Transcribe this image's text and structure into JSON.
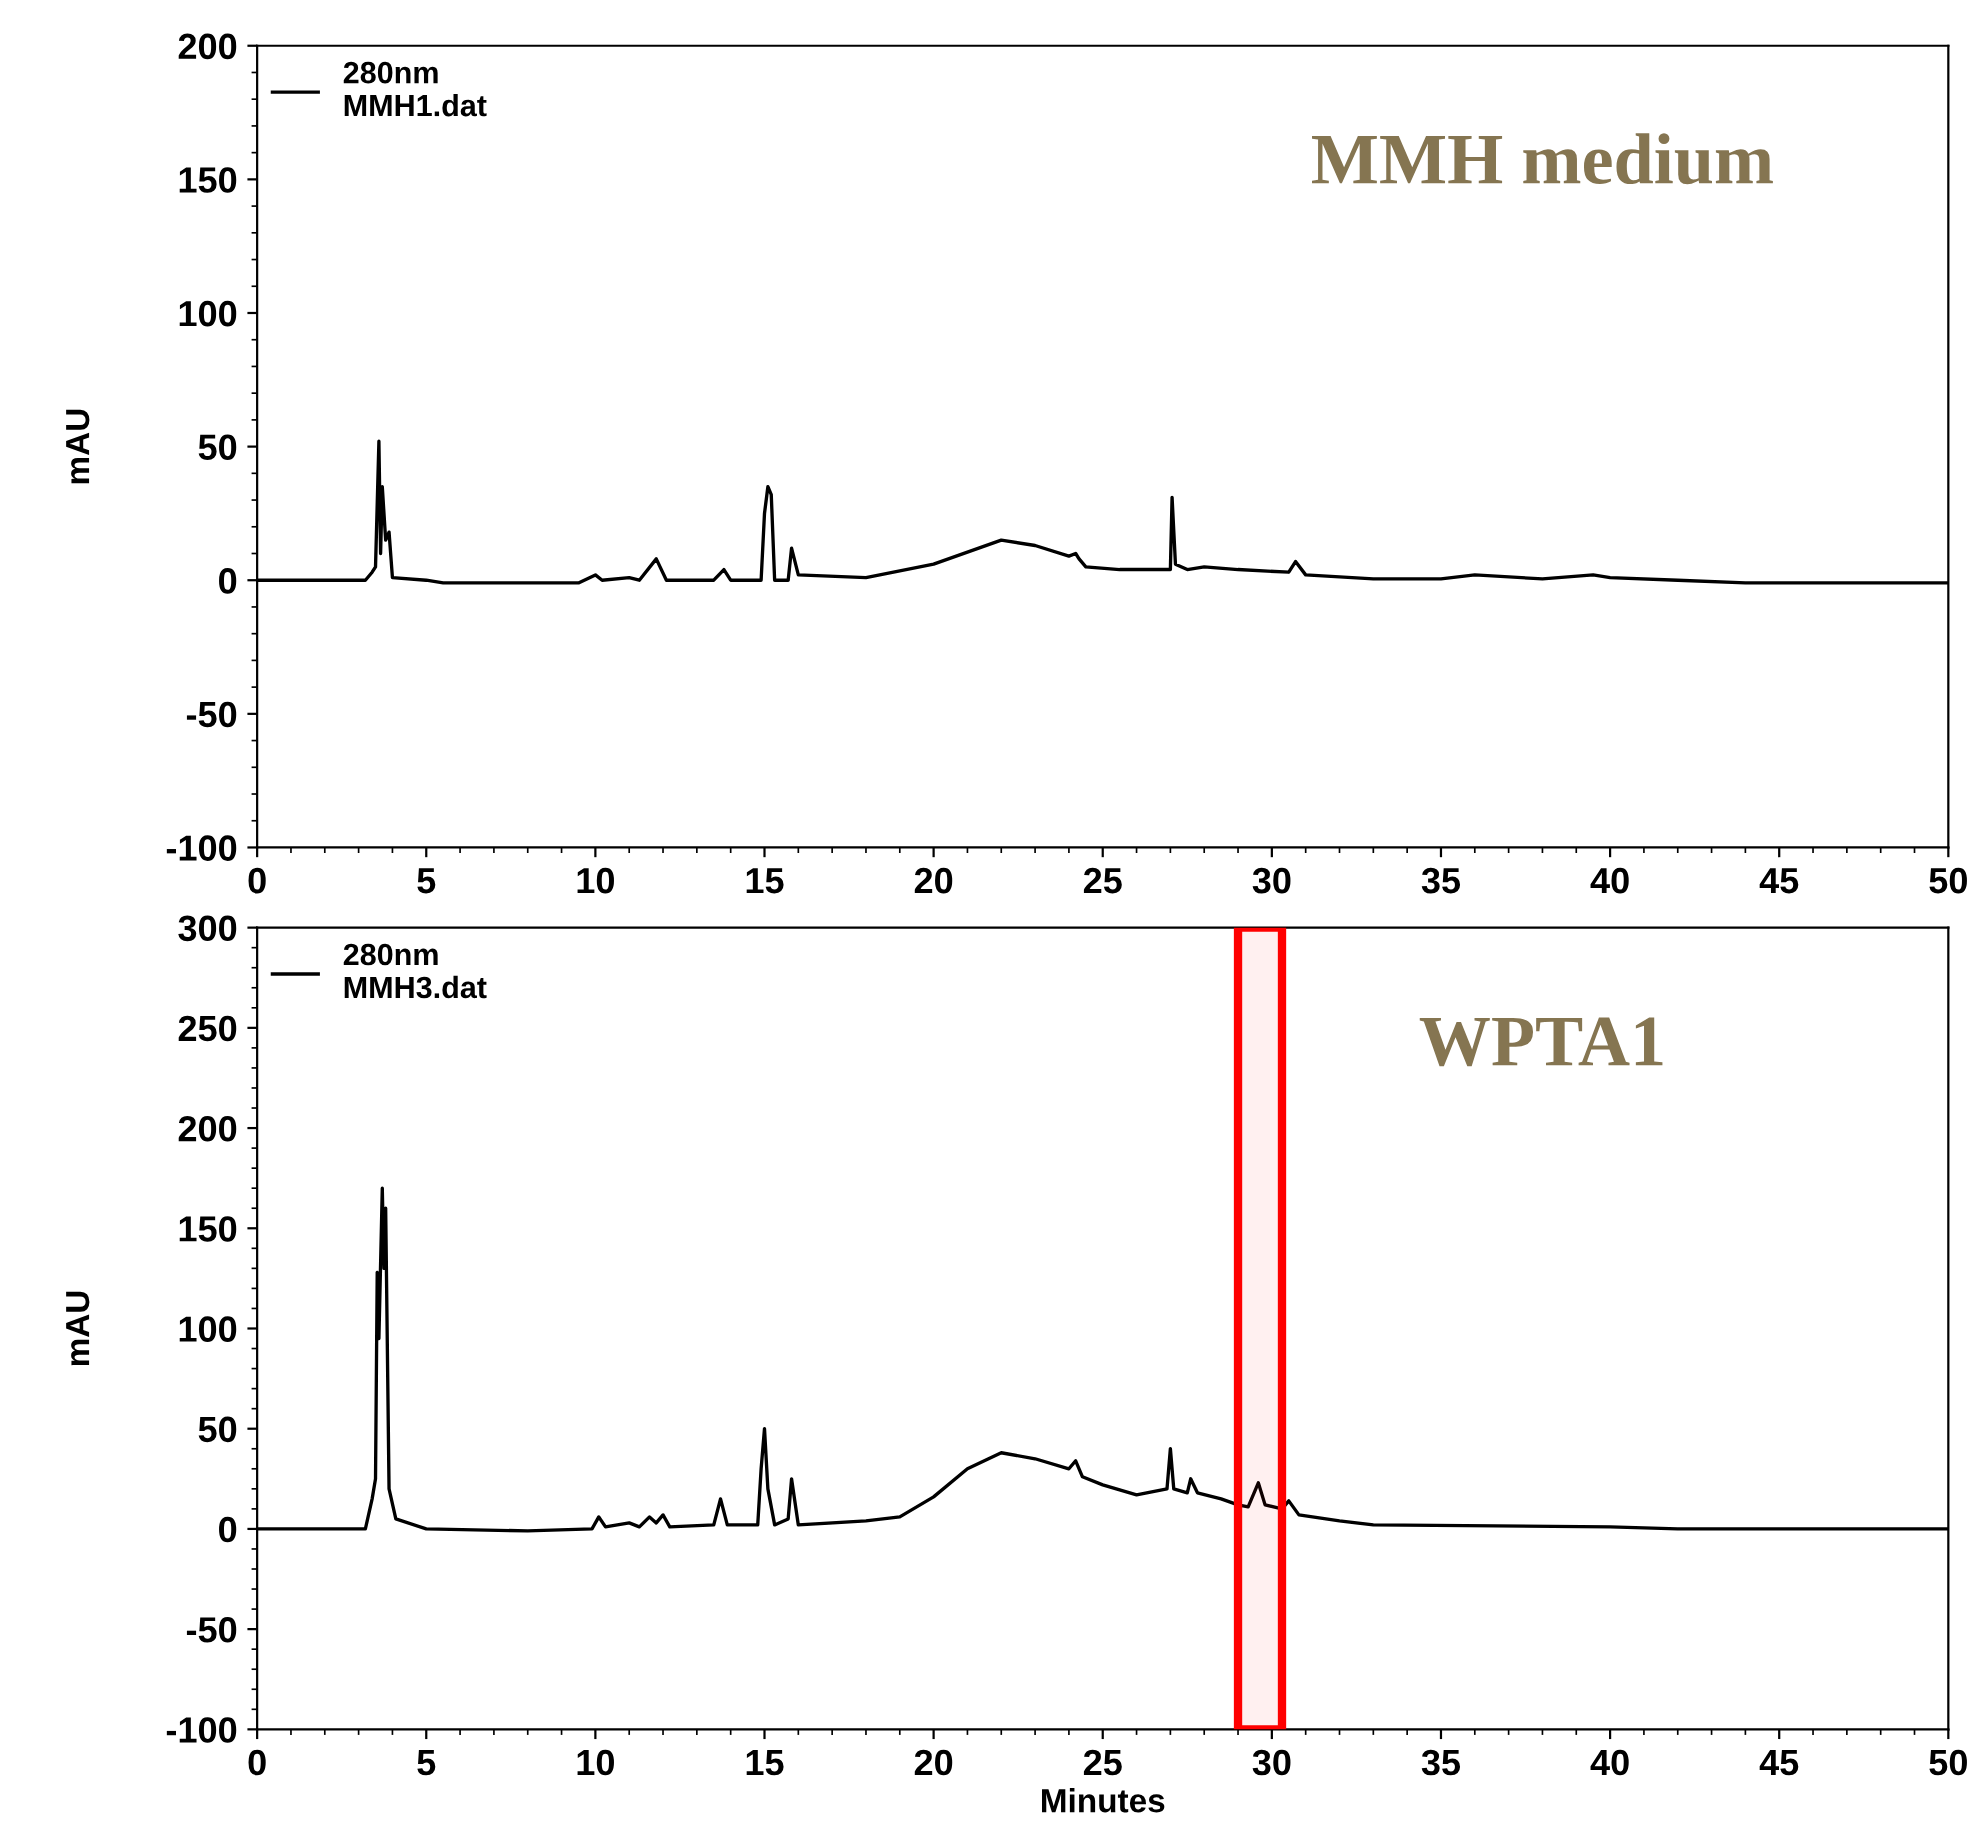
{
  "chart_data": [
    {
      "type": "line",
      "ylabel": "mAU",
      "annotations": [
        "MMH medium"
      ],
      "xlim": [
        0,
        50
      ],
      "xticks": [
        0,
        5,
        10,
        15,
        20,
        25,
        30,
        35,
        40,
        45,
        50
      ],
      "ylim": [
        -100,
        200
      ],
      "yticks": [
        -100,
        -50,
        0,
        50,
        100,
        150,
        200
      ],
      "legend": "top left",
      "grid": false,
      "marker": "none",
      "line_style": "solid",
      "series": [
        {
          "name": "280nm\nMMH1.dat",
          "color": "#000000",
          "x": [
            0,
            3.2,
            3.4,
            3.5,
            3.6,
            3.65,
            3.7,
            3.8,
            3.9,
            4.0,
            5,
            5.5,
            9.5,
            10,
            10.2,
            11,
            11.3,
            11.8,
            12.1,
            13.5,
            13.8,
            14,
            14.9,
            15,
            15.1,
            15.2,
            15.3,
            15.7,
            15.8,
            16,
            18,
            20,
            22,
            23,
            24,
            24.2,
            24.3,
            24.5,
            25.5,
            26.5,
            27,
            27.05,
            27.15,
            27.5,
            28,
            29,
            30.5,
            30.7,
            31,
            33,
            35,
            36,
            38,
            39.5,
            40,
            42,
            44,
            50
          ],
          "values": [
            0,
            0,
            3,
            5,
            52,
            10,
            35,
            15,
            18,
            1,
            0,
            -1,
            -1,
            2,
            0,
            1,
            0,
            8,
            0,
            0,
            4,
            0,
            0,
            25,
            35,
            32,
            0,
            0,
            12,
            2,
            1,
            6,
            15,
            13,
            9,
            10,
            8,
            5,
            4,
            4,
            4,
            31,
            6,
            4,
            5,
            4,
            3,
            7,
            2,
            0.5,
            0.5,
            2,
            0.5,
            2,
            1,
            0,
            -1,
            -1
          ]
        }
      ]
    },
    {
      "type": "line",
      "xlabel": "Minutes",
      "ylabel": "mAU",
      "annotations": [
        "WPTA1"
      ],
      "xlim": [
        0,
        50
      ],
      "xticks": [
        0,
        5,
        10,
        15,
        20,
        25,
        30,
        35,
        40,
        45,
        50
      ],
      "ylim": [
        -100,
        300
      ],
      "yticks": [
        -100,
        -50,
        0,
        50,
        100,
        150,
        200,
        250,
        300
      ],
      "legend": "top left",
      "grid": false,
      "marker": "none",
      "line_style": "solid",
      "bands": [
        {
          "axis": "x",
          "from": 29,
          "to": 30.3,
          "color": "#ff0000"
        }
      ],
      "series": [
        {
          "name": "280nm\nMMH3.dat",
          "color": "#000000",
          "x": [
            0,
            3.2,
            3.4,
            3.5,
            3.55,
            3.6,
            3.7,
            3.75,
            3.8,
            3.9,
            4.1,
            5,
            8,
            9.9,
            10.1,
            10.3,
            11,
            11.3,
            11.6,
            11.8,
            12,
            12.2,
            13.5,
            13.7,
            13.9,
            14.8,
            14.9,
            15,
            15.1,
            15.3,
            15.7,
            15.8,
            16,
            18,
            19,
            20,
            21,
            22,
            23,
            24,
            24.2,
            24.4,
            25,
            26,
            26.9,
            27,
            27.1,
            27.5,
            27.6,
            27.8,
            28.5,
            29,
            29.3,
            29.6,
            29.8,
            30.3,
            30.5,
            30.8,
            32,
            33,
            40,
            42,
            50
          ],
          "values": [
            0,
            0,
            15,
            25,
            128,
            95,
            170,
            130,
            160,
            20,
            5,
            0,
            -1,
            0,
            6,
            1,
            3,
            1,
            6,
            3,
            7,
            1,
            2,
            15,
            2,
            2,
            30,
            50,
            20,
            2,
            5,
            25,
            2,
            4,
            6,
            16,
            30,
            38,
            35,
            30,
            34,
            26,
            22,
            17,
            20,
            40,
            20,
            18,
            25,
            18,
            15,
            12,
            11,
            23,
            12,
            10,
            14,
            7,
            4,
            2,
            1,
            0,
            0
          ]
        }
      ]
    }
  ]
}
